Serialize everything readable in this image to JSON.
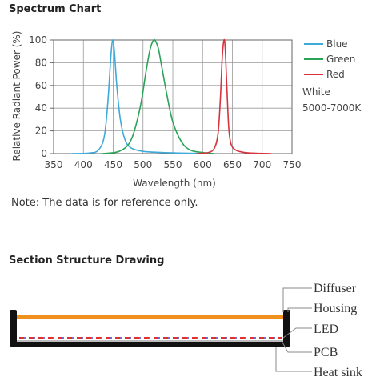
{
  "spectrum": {
    "title": "Spectrum Chart",
    "note": "Note: The data is for reference only."
  },
  "chart_data": {
    "type": "line",
    "xlabel": "Wavelength (nm)",
    "ylabel": "Relative Radiant Power (%)",
    "xlim": [
      350,
      750
    ],
    "ylim": [
      0,
      100
    ],
    "xticks": [
      350,
      400,
      450,
      500,
      550,
      600,
      650,
      700,
      750
    ],
    "yticks": [
      0,
      20,
      40,
      60,
      80,
      100
    ],
    "grid": true,
    "legend_position": "right",
    "series": [
      {
        "name": "Blue",
        "color": "#3fa9d9",
        "x": [
          380,
          410,
          425,
          435,
          441,
          446,
          449,
          452,
          456,
          462,
          470,
          480,
          500,
          530,
          560,
          620
        ],
        "y": [
          0,
          0.5,
          3,
          15,
          45,
          85,
          100,
          90,
          60,
          30,
          12,
          5,
          2,
          1,
          0.5,
          0
        ]
      },
      {
        "name": "Green",
        "color": "#2aa357",
        "x": [
          430,
          460,
          480,
          495,
          505,
          512,
          518,
          522,
          526,
          532,
          540,
          550,
          565,
          580,
          600,
          620
        ],
        "y": [
          0,
          2,
          12,
          40,
          72,
          92,
          100,
          98,
          92,
          75,
          52,
          28,
          10,
          3,
          1,
          0
        ]
      },
      {
        "name": "Red",
        "color": "#d6333f",
        "x": [
          590,
          610,
          620,
          626,
          630,
          633,
          636,
          638,
          641,
          644,
          648,
          656,
          670,
          690,
          715
        ],
        "y": [
          0,
          1,
          5,
          18,
          50,
          85,
          100,
          92,
          55,
          22,
          8,
          3,
          1,
          0.3,
          0
        ]
      }
    ],
    "legend_extra": [
      "White",
      "5000-7000K"
    ]
  },
  "section": {
    "title": "Section Structure Drawing",
    "labels": [
      "Diffuser",
      "Housing",
      "LED",
      "PCB",
      "Heat sink"
    ],
    "colors": {
      "diffuser": "#f0901f",
      "housing": "#111111",
      "led": "#e0302e",
      "led_alt": "#6f6fd8",
      "leader": "#888888"
    }
  }
}
